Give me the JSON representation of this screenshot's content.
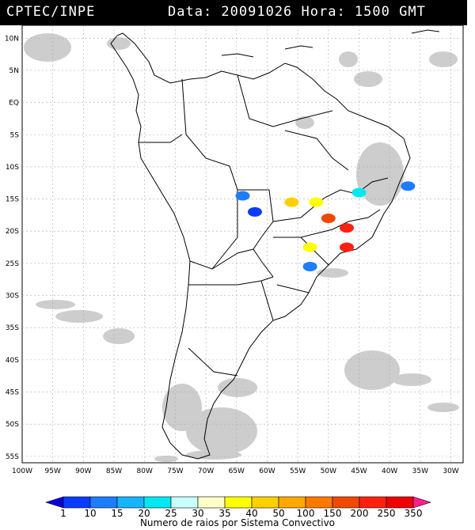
{
  "header": {
    "org": "CPTEC/INPE",
    "stamp": "Data: 20091026 Hora: 1500 GMT"
  },
  "map": {
    "lat_labels": [
      "10N",
      "5N",
      "EQ",
      "5S",
      "10S",
      "15S",
      "20S",
      "25S",
      "30S",
      "35S",
      "40S",
      "45S",
      "50S",
      "55S"
    ],
    "lon_labels": [
      "100W",
      "95W",
      "90W",
      "85W",
      "80W",
      "75W",
      "70W",
      "65W",
      "60W",
      "55W",
      "50W",
      "45W",
      "40W",
      "35W",
      "30W"
    ],
    "lon_range": [
      -100,
      -28
    ],
    "lat_range": [
      -56,
      12
    ],
    "ocean_color": "#ffffff",
    "land_outline_color": "#000000",
    "cloud_color": "#c8c8c8",
    "grid": "dashed"
  },
  "legend": {
    "title": "Numero de raios por Sistema Convectivo",
    "ticks": [
      "1",
      "10",
      "15",
      "20",
      "25",
      "30",
      "35",
      "40",
      "50",
      "100",
      "150",
      "200",
      "250",
      "350"
    ],
    "colors": [
      "#0a00d8",
      "#0a3cff",
      "#1e7cff",
      "#14b4ff",
      "#00e8f0",
      "#c8ffff",
      "#ffffc8",
      "#ffff00",
      "#ffd000",
      "#ffa800",
      "#ff7800",
      "#f04800",
      "#ff2010",
      "#f00000",
      "#ff1e8c"
    ]
  },
  "systems": [
    {
      "color_index": 1,
      "lon": -62,
      "lat": -17
    },
    {
      "color_index": 2,
      "lon": -64,
      "lat": -14.5
    },
    {
      "color_index": 8,
      "lon": -56,
      "lat": -15.5
    },
    {
      "color_index": 7,
      "lon": -52,
      "lat": -15.5
    },
    {
      "color_index": 12,
      "lon": -47,
      "lat": -19.5
    },
    {
      "color_index": 11,
      "lon": -50,
      "lat": -18
    },
    {
      "color_index": 7,
      "lon": -53,
      "lat": -22.5
    },
    {
      "color_index": 12,
      "lon": -47,
      "lat": -22.5
    },
    {
      "color_index": 2,
      "lon": -53,
      "lat": -25.5
    },
    {
      "color_index": 4,
      "lon": -45,
      "lat": -14
    },
    {
      "color_index": 2,
      "lon": -37,
      "lat": -13
    }
  ]
}
